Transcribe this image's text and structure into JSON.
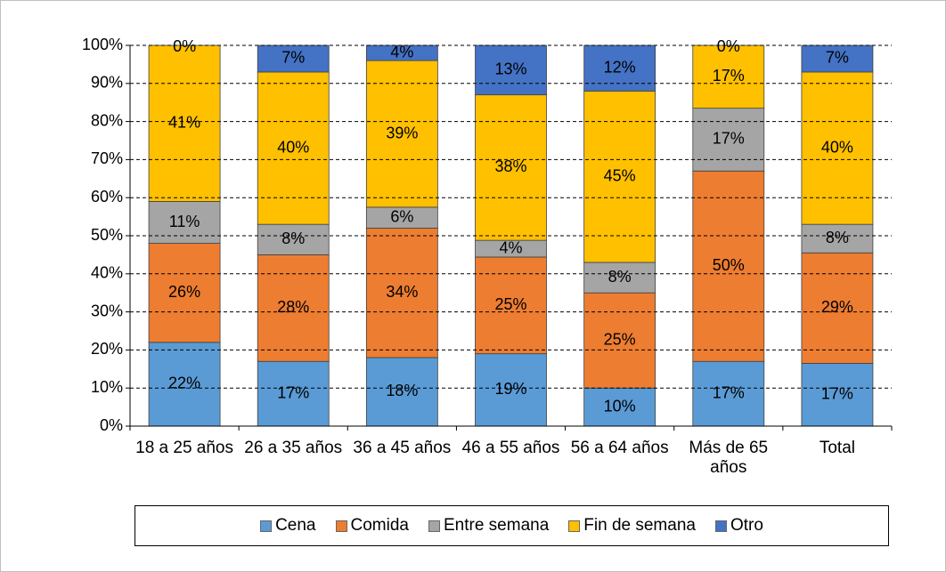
{
  "chart_data": {
    "type": "stacked_bar",
    "categories": [
      "18 a 25 años",
      "26 a 35 años",
      "36 a 45 años",
      "46 a 55 años",
      "56 a 64 años",
      "Más de 65 años",
      "Total"
    ],
    "series": [
      {
        "name": "Cena",
        "color": "#5b9bd5",
        "values": [
          22,
          17,
          18,
          19,
          10,
          17,
          16.5
        ],
        "value_labels": [
          "22%",
          "17%",
          "18%",
          "19%",
          "10%",
          "17%",
          "17%"
        ]
      },
      {
        "name": "Comida",
        "color": "#ed7d31",
        "values": [
          26,
          28,
          34,
          25.4,
          25,
          50,
          29
        ],
        "value_labels": [
          "26%",
          "28%",
          "34%",
          "25%",
          "25%",
          "50%",
          "29%"
        ]
      },
      {
        "name": "Entre semana",
        "color": "#a5a5a5",
        "values": [
          11,
          8,
          5.5,
          4.4,
          8,
          16.5,
          7.5
        ],
        "value_labels": [
          "11%",
          "8%",
          "6%",
          "4%",
          "8%",
          "17%",
          "8%"
        ]
      },
      {
        "name": "Fin de semana",
        "color": "#ffc000",
        "values": [
          41,
          40,
          38.5,
          38.2,
          45,
          16.5,
          40
        ],
        "value_labels": [
          "41%",
          "40%",
          "39%",
          "38%",
          "45%",
          "17%",
          "40%"
        ]
      },
      {
        "name": "Otro",
        "color": "#4472c4",
        "values": [
          0,
          7,
          4,
          13,
          12,
          0,
          7
        ],
        "value_labels": [
          "0%",
          "7%",
          "4%",
          "13%",
          "12%",
          "0%",
          "7%"
        ]
      }
    ],
    "ylim": [
      0,
      100
    ],
    "yticks": [
      {
        "value": 0,
        "label": "0%"
      },
      {
        "value": 10,
        "label": "10%"
      },
      {
        "value": 20,
        "label": "20%"
      },
      {
        "value": 30,
        "label": "30%"
      },
      {
        "value": 40,
        "label": "40%"
      },
      {
        "value": 50,
        "label": "50%"
      },
      {
        "value": 60,
        "label": "60%"
      },
      {
        "value": 70,
        "label": "70%"
      },
      {
        "value": 80,
        "label": "80%"
      },
      {
        "value": 90,
        "label": "90%"
      },
      {
        "value": 100,
        "label": "100%"
      }
    ],
    "grid": true,
    "legend": "bottom"
  }
}
